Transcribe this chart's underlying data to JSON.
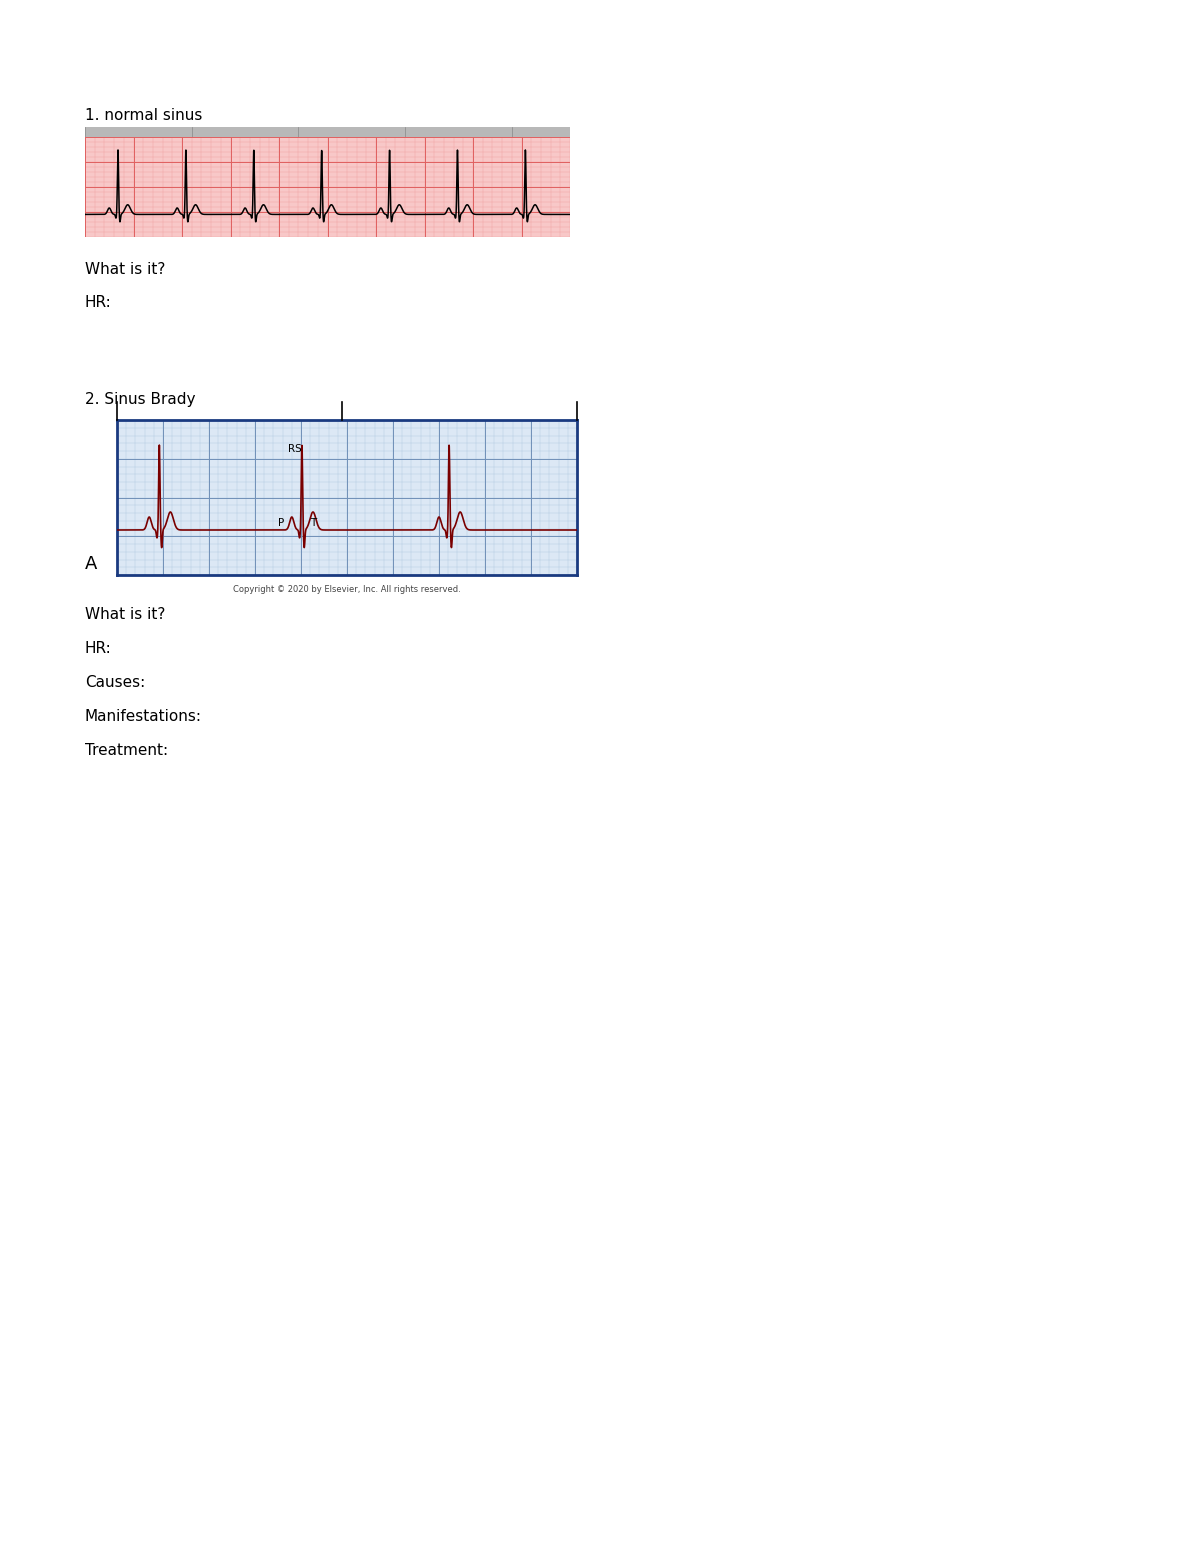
{
  "bg_color": "#ffffff",
  "page_width": 12.0,
  "page_height": 15.53,
  "section1_label": "1. normal sinus",
  "section1_what": "What is it?",
  "section1_hr": "HR:",
  "section2_label": "2. Sinus Brady",
  "section2_what": "What is it?",
  "section2_hr": "HR:",
  "section2_causes": "Causes:",
  "section2_manifest": "Manifestations:",
  "section2_treatment": "Treatment:",
  "copyright": "Copyright © 2020 by Elsevier, Inc. All rights reserved.",
  "ecg1_bg": "#f8c8c8",
  "ecg1_grid_minor": "#f0a0a0",
  "ecg1_grid_major": "#e06060",
  "ecg1_line": "#000000",
  "ecg2_bg": "#dce8f5",
  "ecg2_grid_minor": "#b0c8e0",
  "ecg2_grid_major": "#7090b8",
  "ecg2_border": "#1a3a80",
  "ecg2_line": "#7a0000",
  "label_fontsize": 11,
  "text_fontsize": 11,
  "copyright_fontsize": 6
}
